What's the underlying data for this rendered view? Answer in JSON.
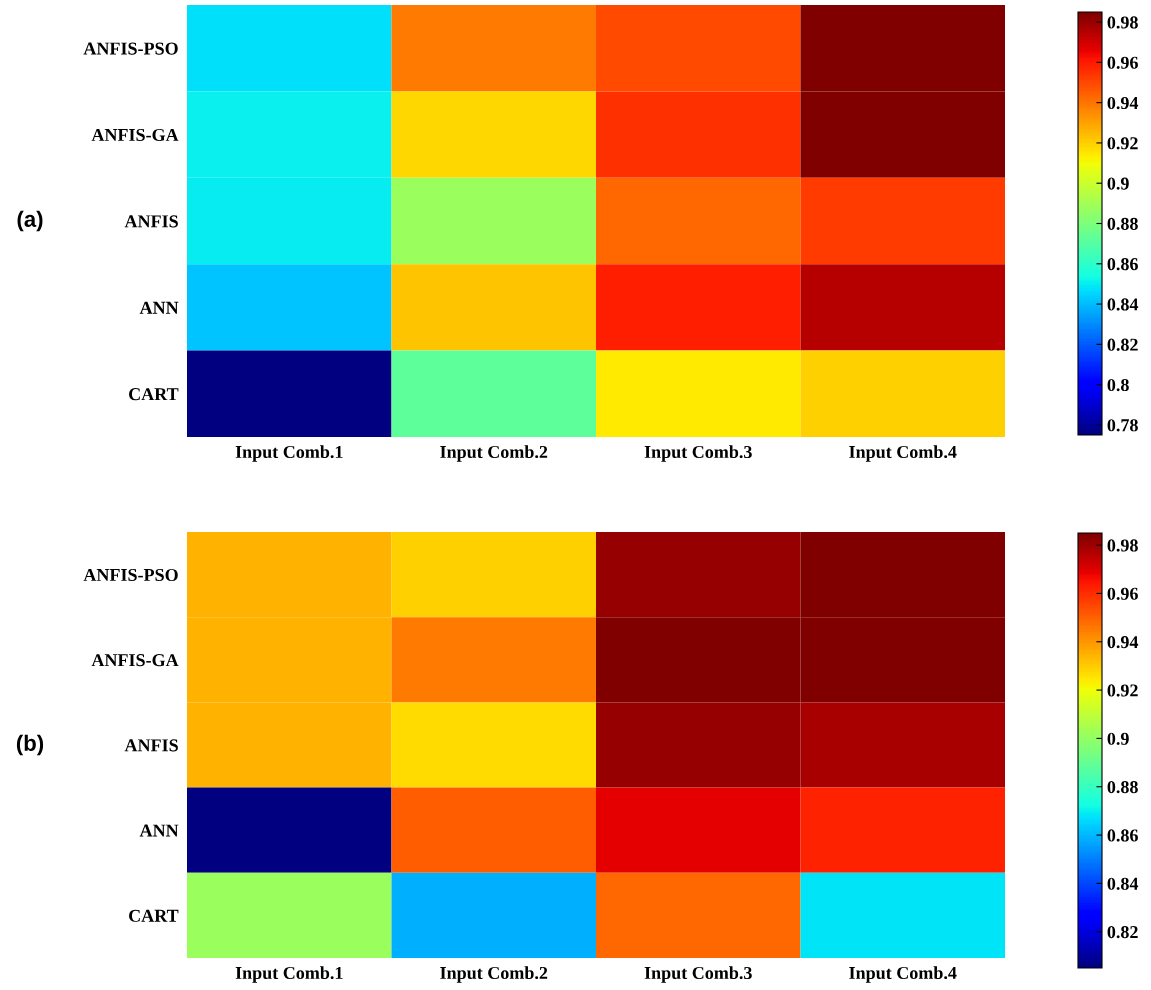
{
  "chart_data": [
    {
      "type": "heatmap",
      "title": "(a)",
      "categories": [
        "Input Comb.1",
        "Input Comb.2",
        "Input Comb.3",
        "Input Comb.4"
      ],
      "y_categories": [
        "ANFIS-PSO",
        "ANFIS-GA",
        "ANFIS",
        "ANN",
        "CART"
      ],
      "cells": [
        [
          0.848,
          0.939,
          0.949,
          0.985
        ],
        [
          0.851,
          0.918,
          0.955,
          0.985
        ],
        [
          0.85,
          0.888,
          0.943,
          0.953
        ],
        [
          0.842,
          0.922,
          0.959,
          0.975
        ],
        [
          0.775,
          0.872,
          0.914,
          0.92
        ]
      ],
      "clim": [
        0.775,
        0.985
      ],
      "cticks": [
        0.78,
        0.8,
        0.82,
        0.84,
        0.86,
        0.88,
        0.9,
        0.92,
        0.94,
        0.96,
        0.98
      ]
    },
    {
      "type": "heatmap",
      "title": "(b)",
      "categories": [
        "Input Comb.1",
        "Input Comb.2",
        "Input Comb.3",
        "Input Comb.4"
      ],
      "y_categories": [
        "ANFIS-PSO",
        "ANFIS-GA",
        "ANFIS",
        "ANN",
        "CART"
      ],
      "cells": [
        [
          0.935,
          0.929,
          0.981,
          0.985
        ],
        [
          0.935,
          0.945,
          0.985,
          0.985
        ],
        [
          0.935,
          0.927,
          0.981,
          0.978
        ],
        [
          0.805,
          0.951,
          0.969,
          0.962
        ],
        [
          0.902,
          0.859,
          0.949,
          0.868
        ]
      ],
      "clim": [
        0.805,
        0.985
      ],
      "cticks": [
        0.82,
        0.84,
        0.86,
        0.88,
        0.9,
        0.92,
        0.94,
        0.96,
        0.98
      ]
    }
  ]
}
